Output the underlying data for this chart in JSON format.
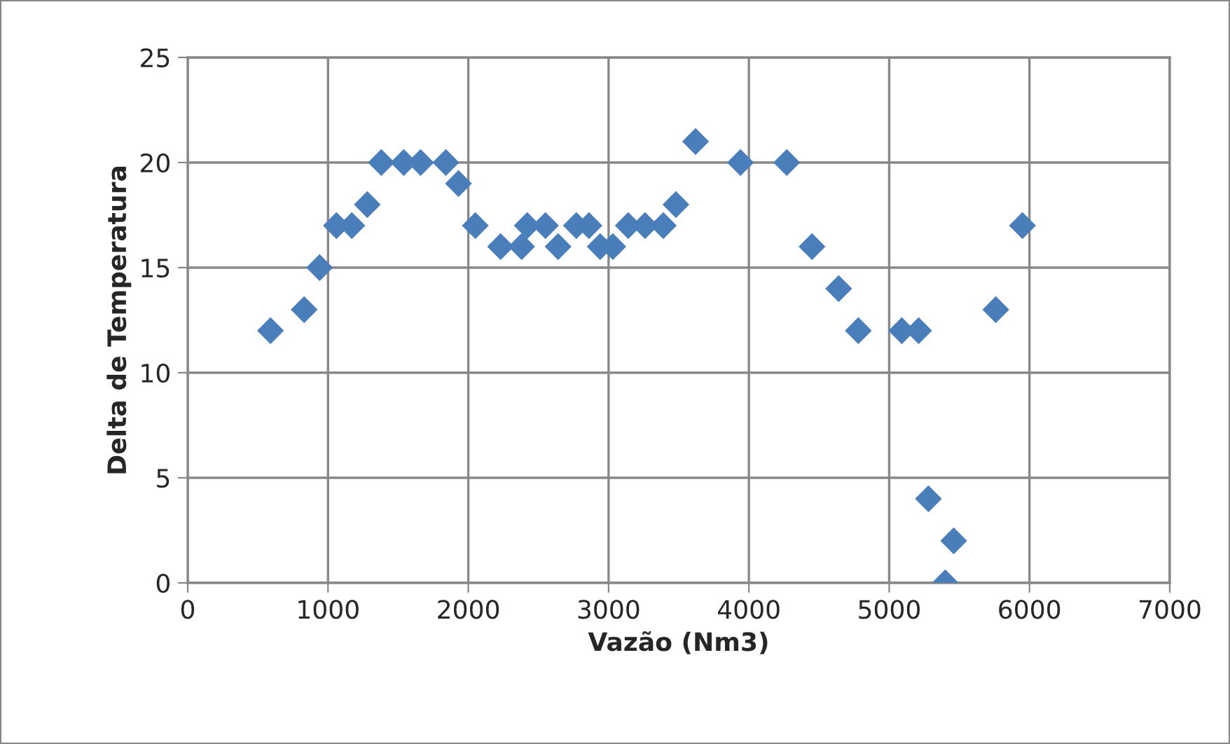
{
  "chart_data": {
    "type": "scatter",
    "xlabel": "Vazão (Nm3)",
    "ylabel": "Delta de Temperatura",
    "x": [
      590,
      830,
      940,
      1060,
      1170,
      1280,
      1380,
      1540,
      1660,
      1840,
      1930,
      2050,
      2230,
      2380,
      2420,
      2550,
      2640,
      2770,
      2860,
      2940,
      3030,
      3140,
      3260,
      3390,
      3480,
      3620,
      3940,
      4270,
      4450,
      4640,
      4780,
      5090,
      5210,
      5280,
      5400,
      5460,
      5760,
      5950
    ],
    "series": [
      {
        "color": "#4a7ebb",
        "values": [
          12,
          13,
          15,
          17,
          17,
          18,
          20,
          20,
          20,
          20,
          19,
          17,
          16,
          16,
          17,
          17,
          16,
          17,
          17,
          16,
          16,
          17,
          17,
          17,
          18,
          21,
          20,
          20,
          16,
          14,
          12,
          12,
          12,
          4,
          0,
          2,
          13,
          17
        ]
      }
    ],
    "xlim": [
      0,
      7000
    ],
    "xticks": [
      0,
      1000,
      2000,
      3000,
      4000,
      5000,
      6000,
      7000
    ],
    "ylim": [
      0,
      25
    ],
    "yticks": [
      0,
      5,
      10,
      15,
      20,
      25
    ],
    "grid": true,
    "marker": "diamond",
    "legend": false
  }
}
